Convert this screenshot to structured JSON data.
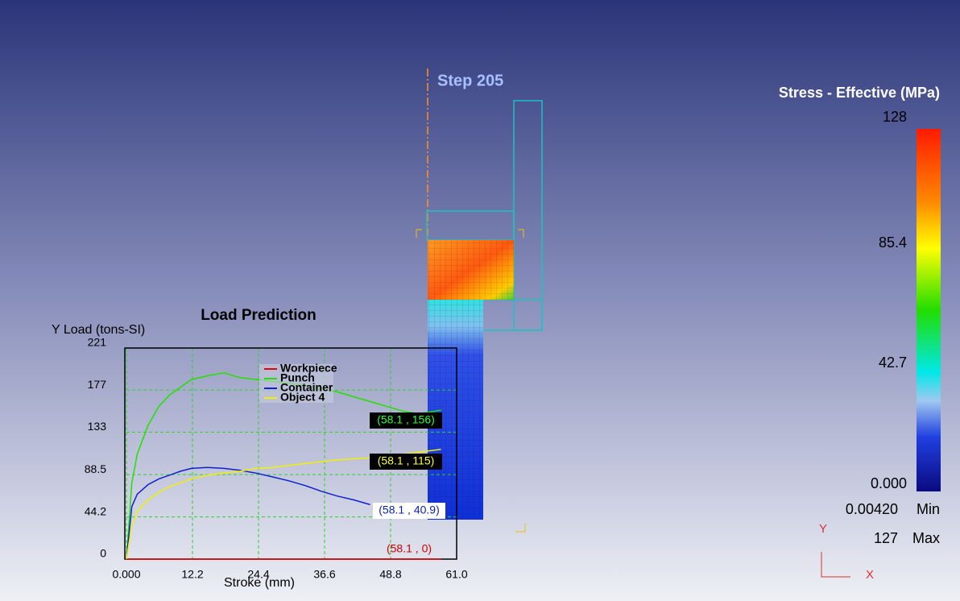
{
  "chart_data": {
    "type": "line",
    "title": "Load Prediction",
    "y_label": "Y Load (tons-SI)",
    "x_label": "Stroke (mm)",
    "x": [
      0,
      1,
      2,
      4,
      6,
      8,
      10,
      12,
      15,
      18,
      21,
      24,
      27,
      30,
      33,
      36,
      39,
      42,
      45,
      48,
      51,
      54,
      58.1
    ],
    "series": [
      {
        "name": "Workpiece",
        "color": "#e00000",
        "values": [
          0,
          0,
          0,
          0,
          0,
          0,
          0,
          0,
          0,
          0,
          0,
          0,
          0,
          0,
          0,
          0,
          0,
          0,
          0,
          0,
          0,
          0,
          0
        ]
      },
      {
        "name": "Punch",
        "color": "#22e000",
        "values": [
          0,
          80,
          110,
          140,
          160,
          172,
          180,
          188,
          192,
          195,
          190,
          188,
          186,
          184,
          182,
          178,
          175,
          170,
          165,
          160,
          155,
          152,
          156
        ]
      },
      {
        "name": "Container",
        "color": "#1020d0",
        "values": [
          0,
          55,
          68,
          78,
          84,
          88,
          92,
          95,
          96,
          95,
          93,
          90,
          86,
          82,
          77,
          71,
          66,
          62,
          57,
          null,
          null,
          null,
          null
        ]
      },
      {
        "name": "Object 4",
        "color": "#f0f000",
        "values": [
          0,
          35,
          50,
          62,
          70,
          76,
          80,
          84,
          88,
          90,
          92,
          95,
          96,
          98,
          100,
          102,
          104,
          105,
          106,
          108,
          110,
          112,
          115
        ]
      }
    ],
    "xlim": [
      0,
      61
    ],
    "ylim": [
      0,
      221
    ],
    "xticks": [
      {
        "value": 0,
        "label": "0.000"
      },
      12.2,
      24.4,
      36.6,
      48.8,
      {
        "value": 61,
        "label": "61.0"
      }
    ],
    "yticks": [
      0,
      44.2,
      88.5,
      133,
      177,
      221
    ],
    "grid": true,
    "annotations": [
      "(58.1 , 156)",
      "(58.1 , 115)",
      "(58.1 , 40.9)",
      "(58.1 , 0)"
    ]
  },
  "scene": {
    "step": "Step  205",
    "colorbar": {
      "title": "Stress - Effective (MPa)",
      "labels": [
        "128",
        "85.4",
        "42.7",
        "0.000"
      ]
    },
    "min_value": "0.00420",
    "min_label": "Min",
    "max_value": "127",
    "max_label": "Max",
    "axis_y": "Y",
    "axis_x": "X"
  }
}
